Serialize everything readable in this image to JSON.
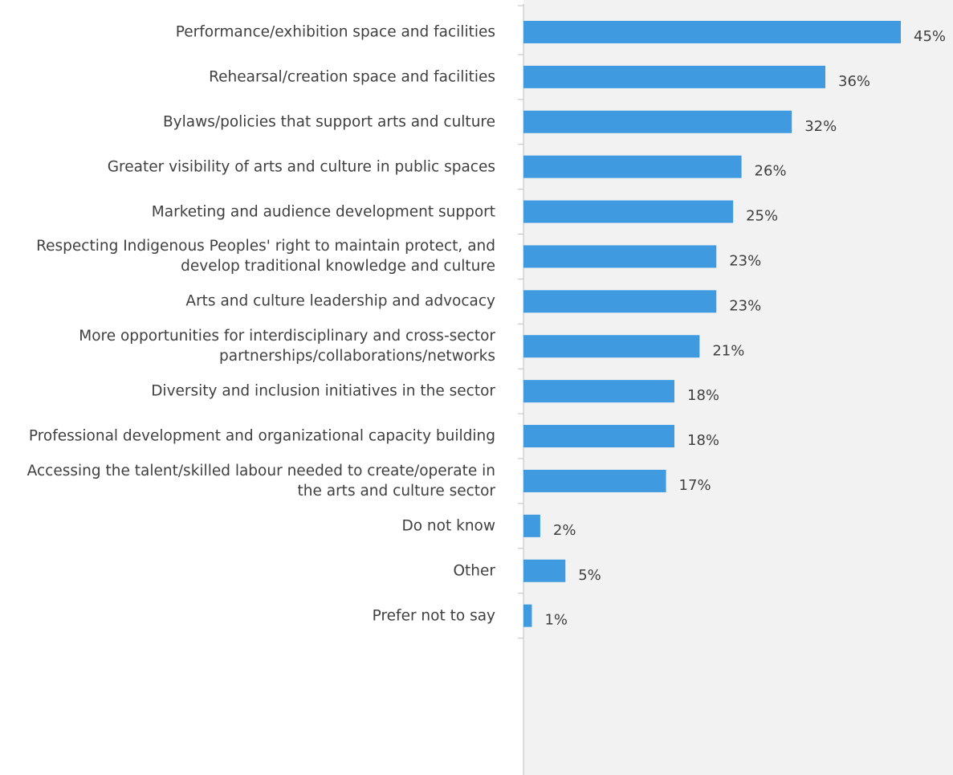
{
  "chart_data": {
    "type": "bar",
    "orientation": "horizontal",
    "categories": [
      "Performance/exhibition space and facilities",
      "Rehearsal/creation space and facilities",
      "Bylaws/policies that support arts and culture",
      "Greater visibility of arts and culture in public spaces",
      "Marketing and audience development support",
      "Respecting Indigenous Peoples' right to maintain protect, and develop traditional knowledge and culture",
      "Arts and culture leadership and advocacy",
      "More opportunities for interdisciplinary and cross-sector partnerships/collaborations/networks",
      "Diversity and inclusion initiatives in the sector",
      "Professional development and organizational capacity building",
      "Accessing the talent/skilled labour needed to create/operate in the arts and culture sector",
      "Do not know",
      "Other",
      "Prefer not to say"
    ],
    "values": [
      45,
      36,
      32,
      26,
      25,
      23,
      23,
      21,
      18,
      18,
      17,
      2,
      5,
      1
    ],
    "value_labels": [
      "45%",
      "36%",
      "32%",
      "26%",
      "25%",
      "23%",
      "23%",
      "21%",
      "18%",
      "18%",
      "17%",
      "2%",
      "5%",
      "1%"
    ],
    "color": "#3f9ae0"
  }
}
